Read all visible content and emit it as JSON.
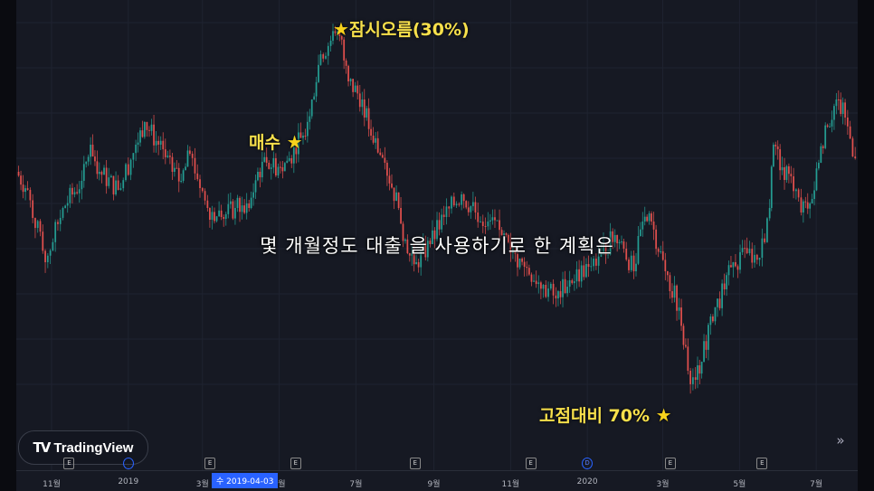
{
  "chart_data": {
    "type": "candlestick",
    "title": "",
    "xlabel": "",
    "ylabel": "",
    "grid": true,
    "y_axis_visible": false,
    "colors": {
      "up": "#26a69a",
      "down": "#ef5350",
      "background": "#161923",
      "annotation": "#f7e04b"
    },
    "x_ticks": [
      {
        "date": "2018-11-01",
        "label": "11월"
      },
      {
        "date": "2019-01-01",
        "label": "2019"
      },
      {
        "date": "2019-03-01",
        "label": "3월"
      },
      {
        "date": "2019-05-01",
        "label": "5월"
      },
      {
        "date": "2019-07-01",
        "label": "7월"
      },
      {
        "date": "2019-09-01",
        "label": "9월"
      },
      {
        "date": "2019-11-01",
        "label": "11월"
      },
      {
        "date": "2020-01-01",
        "label": "2020"
      },
      {
        "date": "2020-03-01",
        "label": "3월"
      },
      {
        "date": "2020-05-01",
        "label": "5월"
      },
      {
        "date": "2020-07-01",
        "label": "7월"
      }
    ],
    "crosshair_label": "수 2019-04-03",
    "events": [
      {
        "date": "2018-11-15",
        "type": "E"
      },
      {
        "date": "2019-01-01",
        "type": "split"
      },
      {
        "date": "2019-03-07",
        "type": "E"
      },
      {
        "date": "2019-05-14",
        "type": "E"
      },
      {
        "date": "2019-08-17",
        "type": "E"
      },
      {
        "date": "2019-11-17",
        "type": "E"
      },
      {
        "date": "2020-01-01",
        "type": "D"
      },
      {
        "date": "2020-03-07",
        "type": "E"
      },
      {
        "date": "2020-05-19",
        "type": "E"
      }
    ],
    "relative_close": [
      [
        "2018-10-04",
        70
      ],
      [
        "2018-10-13",
        65
      ],
      [
        "2018-10-27",
        45
      ],
      [
        "2018-11-10",
        60
      ],
      [
        "2018-11-25",
        67.5
      ],
      [
        "2018-12-02",
        77.5
      ],
      [
        "2018-12-09",
        70
      ],
      [
        "2018-12-24",
        65
      ],
      [
        "2019-01-07",
        77.5
      ],
      [
        "2019-01-14",
        83.75
      ],
      [
        "2019-01-25",
        77.5
      ],
      [
        "2019-02-05",
        70
      ],
      [
        "2019-02-12",
        67.5
      ],
      [
        "2019-02-19",
        75
      ],
      [
        "2019-03-05",
        60
      ],
      [
        "2019-03-16",
        57.5
      ],
      [
        "2019-03-27",
        60
      ],
      [
        "2019-04-07",
        60
      ],
      [
        "2019-04-14",
        70
      ],
      [
        "2019-04-21",
        72.5
      ],
      [
        "2019-05-02",
        71.25
      ],
      [
        "2019-05-09",
        73.75
      ],
      [
        "2019-05-20",
        80
      ],
      [
        "2019-05-27",
        90
      ],
      [
        "2019-06-03",
        102.5
      ],
      [
        "2019-06-11",
        106.25
      ],
      [
        "2019-06-18",
        107.5
      ],
      [
        "2019-06-25",
        95
      ],
      [
        "2019-07-06",
        90
      ],
      [
        "2019-07-13",
        80
      ],
      [
        "2019-07-24",
        72.5
      ],
      [
        "2019-08-04",
        60
      ],
      [
        "2019-08-11",
        47.5
      ],
      [
        "2019-08-18",
        45
      ],
      [
        "2019-08-29",
        50
      ],
      [
        "2019-09-09",
        57.5
      ],
      [
        "2019-09-23",
        63.75
      ],
      [
        "2019-10-04",
        58.75
      ],
      [
        "2019-10-14",
        56.25
      ],
      [
        "2019-10-25",
        52.5
      ],
      [
        "2019-11-01",
        47.5
      ],
      [
        "2019-11-12",
        43.75
      ],
      [
        "2019-11-27",
        38.75
      ],
      [
        "2019-12-07",
        35
      ],
      [
        "2019-12-18",
        40
      ],
      [
        "2020-01-02",
        43.75
      ],
      [
        "2020-01-12",
        47.5
      ],
      [
        "2020-01-23",
        52.5
      ],
      [
        "2020-01-30",
        48.75
      ],
      [
        "2020-02-07",
        42.5
      ],
      [
        "2020-02-14",
        56.25
      ],
      [
        "2020-02-21",
        56.25
      ],
      [
        "2020-03-03",
        42.5
      ],
      [
        "2020-03-14",
        32.5
      ],
      [
        "2020-03-21",
        15
      ],
      [
        "2020-03-27",
        12.5
      ],
      [
        "2020-04-01",
        17.5
      ],
      [
        "2020-04-08",
        30
      ],
      [
        "2020-04-19",
        37.5
      ],
      [
        "2020-04-26",
        45
      ],
      [
        "2020-05-07",
        47.5
      ],
      [
        "2020-05-17",
        46.25
      ],
      [
        "2020-05-25",
        60
      ],
      [
        "2020-05-28",
        77.5
      ],
      [
        "2020-06-04",
        71.25
      ],
      [
        "2020-06-11",
        68.75
      ],
      [
        "2020-06-19",
        58.75
      ],
      [
        "2020-06-26",
        61.25
      ],
      [
        "2020-07-03",
        72.5
      ],
      [
        "2020-07-10",
        82.5
      ],
      [
        "2020-07-17",
        90
      ],
      [
        "2020-07-24",
        85
      ],
      [
        "2020-08-01",
        73.75
      ]
    ],
    "annotations": [
      {
        "text": "잠시오름(30%)",
        "icon": "star"
      },
      {
        "text": "매수",
        "icon": "star"
      },
      {
        "text": "고점대비 70%",
        "icon": "star"
      }
    ]
  },
  "subtitle": "몇 개월정도 대출 을 사용하기로 한 계획은",
  "logo": {
    "text": "TradingView",
    "mark": "TV"
  },
  "scroll_button": "»",
  "star_glyph": "★"
}
